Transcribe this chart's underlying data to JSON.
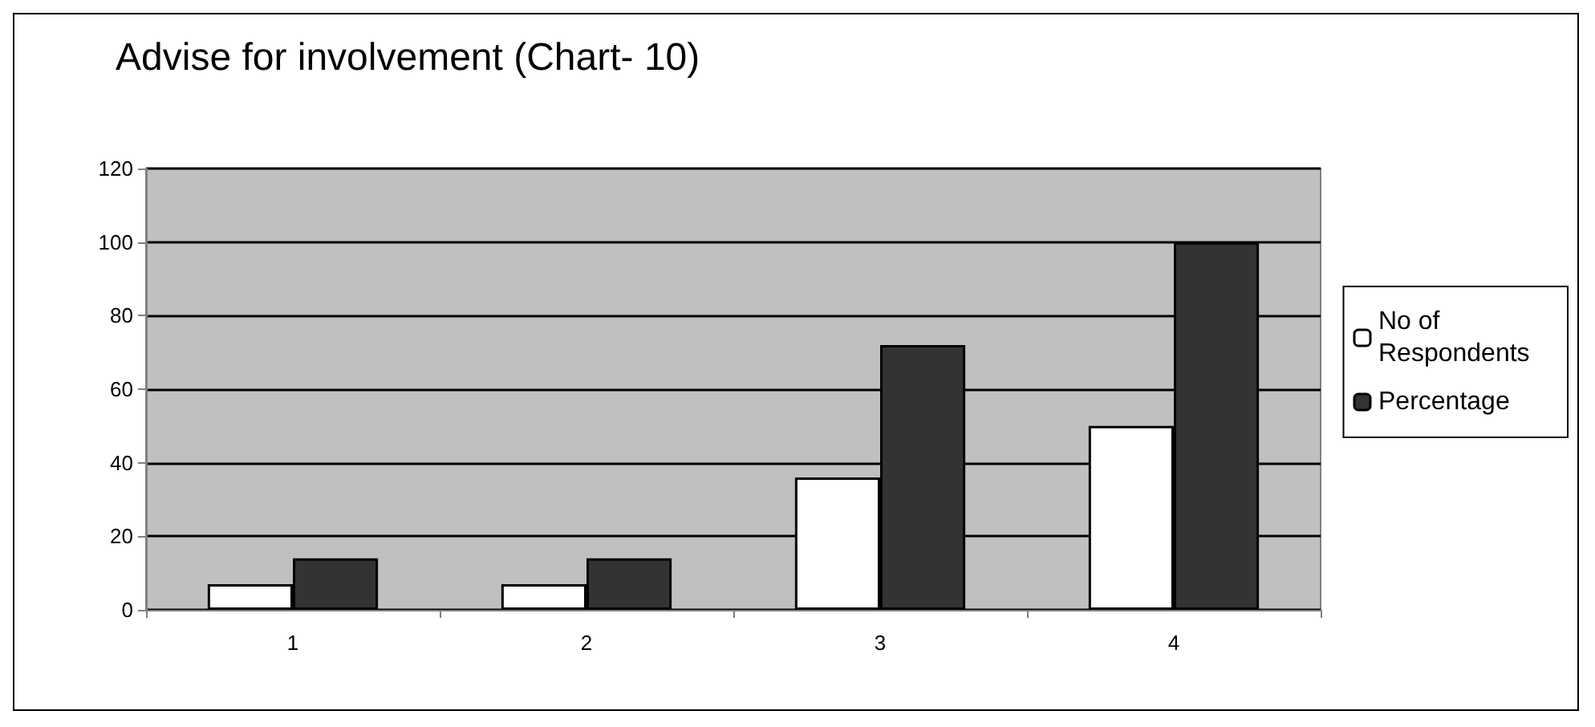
{
  "chart_data": {
    "type": "bar",
    "title": "Advise for involvement (Chart- 10)",
    "categories": [
      "1",
      "2",
      "3",
      "4"
    ],
    "series": [
      {
        "name": "No of Respondents",
        "color": "#ffffff",
        "values": [
          7,
          7,
          36,
          50
        ]
      },
      {
        "name": "Percentage",
        "color": "#333333",
        "values": [
          14,
          14,
          72,
          100
        ]
      }
    ],
    "ylim": [
      0,
      120
    ],
    "yticks": [
      0,
      20,
      40,
      60,
      80,
      100,
      120
    ],
    "grid": "y",
    "legend": "right"
  }
}
